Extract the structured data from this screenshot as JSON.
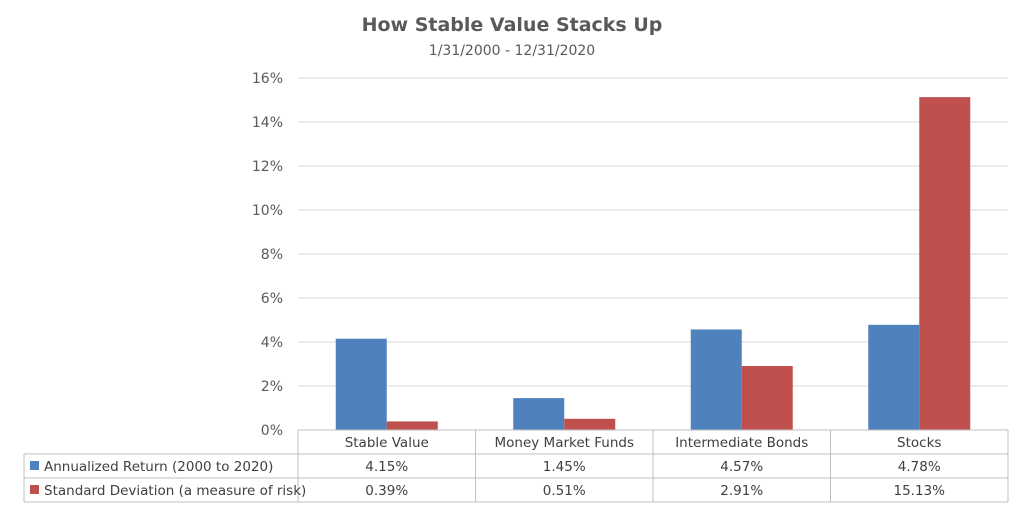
{
  "chart_data": {
    "type": "bar",
    "title": "How Stable Value Stacks Up",
    "subtitle": "1/31/2000 - 12/31/2020",
    "categories": [
      "Stable Value",
      "Money Market Funds",
      "Intermediate Bonds",
      "Stocks"
    ],
    "series": [
      {
        "name": "Annualized Return (2000 to 2020)",
        "color": "#4f81bd",
        "values": [
          4.15,
          1.45,
          4.57,
          4.78
        ],
        "labels": [
          "4.15%",
          "1.45%",
          "4.57%",
          "4.78%"
        ]
      },
      {
        "name": "Standard Deviation (a measure of risk)",
        "color": "#c0504d",
        "values": [
          0.39,
          0.51,
          2.91,
          15.13
        ],
        "labels": [
          "0.39%",
          "0.51%",
          "2.91%",
          "15.13%"
        ]
      }
    ],
    "ylim": [
      0,
      16
    ],
    "yticks": [
      0,
      2,
      4,
      6,
      8,
      10,
      12,
      14,
      16
    ],
    "ytick_labels": [
      "0%",
      "2%",
      "4%",
      "6%",
      "8%",
      "10%",
      "12%",
      "14%",
      "16%"
    ],
    "grid": true,
    "legend": "data-table",
    "xlabel": "",
    "ylabel": ""
  }
}
